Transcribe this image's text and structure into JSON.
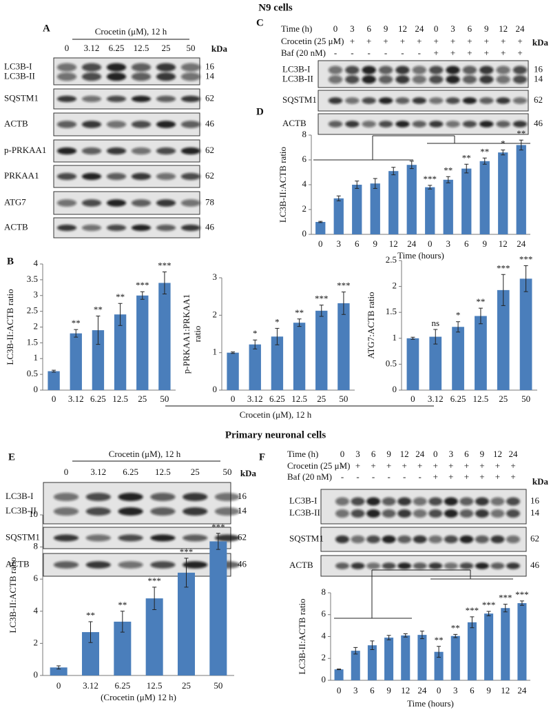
{
  "sections": [
    "N9 cells",
    "Primary neuronal cells"
  ],
  "panel_B": {
    "label": "B",
    "xlabel": "Crocetin (μM), 12 h"
  },
  "blots": [
    {
      "letter": "A",
      "header": "Crocetin (μM), 12 h",
      "lanes": [
        "0",
        "3.12",
        "6.25",
        "12.5",
        "25",
        "50"
      ],
      "kda_unit": "kDa",
      "rows": [
        {
          "labels": [
            "LC3B-I",
            "LC3B-II"
          ],
          "kda": [
            "16",
            "14"
          ]
        },
        {
          "labels": [
            "SQSTM1"
          ],
          "kda": [
            "62"
          ]
        },
        {
          "labels": [
            "ACTB"
          ],
          "kda": [
            "46"
          ]
        },
        {
          "labels": [
            "p-PRKAA1"
          ],
          "kda": [
            "62"
          ]
        },
        {
          "labels": [
            "PRKAA1"
          ],
          "kda": [
            "62"
          ]
        },
        {
          "labels": [
            "ATG7"
          ],
          "kda": [
            "78"
          ]
        },
        {
          "labels": [
            "ACTB"
          ],
          "kda": [
            "46"
          ]
        }
      ]
    },
    {
      "letter": "C",
      "kda_unit": "kDa",
      "treatments": [
        {
          "label": "Time (h)",
          "values": [
            "0",
            "3",
            "6",
            "9",
            "12",
            "24",
            "0",
            "3",
            "6",
            "9",
            "12",
            "24"
          ]
        },
        {
          "label": "Crocetin (25 μM)",
          "values": [
            "-",
            "+",
            "+",
            "+",
            "+",
            "+",
            "+",
            "+",
            "+",
            "+",
            "+",
            "+"
          ]
        },
        {
          "label": "Baf (20 nM)",
          "values": [
            "-",
            "-",
            "-",
            "-",
            "-",
            "-",
            "+",
            "+",
            "+",
            "+",
            "+",
            "+"
          ]
        }
      ],
      "rows": [
        {
          "labels": [
            "LC3B-I",
            "LC3B-II"
          ],
          "kda": [
            "16",
            "14"
          ]
        },
        {
          "labels": [
            "SQSTM1"
          ],
          "kda": [
            "62"
          ]
        },
        {
          "labels": [
            "ACTB"
          ],
          "kda": [
            "46"
          ]
        }
      ]
    },
    {
      "letter": "E",
      "header": "Crocetin (μM), 12 h",
      "lanes": [
        "0",
        "3.12",
        "6.25",
        "12.5",
        "25",
        "50"
      ],
      "kda_unit": "kDa",
      "rows": [
        {
          "labels": [
            "LC3B-I",
            "LC3B-II"
          ],
          "kda": [
            "16",
            "14"
          ]
        },
        {
          "labels": [
            "SQSTM1"
          ],
          "kda": [
            "62"
          ]
        },
        {
          "labels": [
            "ACTB"
          ],
          "kda": [
            "46"
          ]
        }
      ]
    },
    {
      "letter": "F",
      "kda_unit": "kDa",
      "treatments": [
        {
          "label": "Time (h)",
          "values": [
            "0",
            "3",
            "6",
            "9",
            "12",
            "24",
            "0",
            "3",
            "6",
            "9",
            "12",
            "24"
          ]
        },
        {
          "label": "Crocetin (25 μM)",
          "values": [
            "-",
            "+",
            "+",
            "+",
            "+",
            "+",
            "+",
            "+",
            "+",
            "+",
            "+",
            "+"
          ]
        },
        {
          "label": "Baf (20 nM)",
          "values": [
            "-",
            "-",
            "-",
            "-",
            "-",
            "-",
            "+",
            "+",
            "+",
            "+",
            "+",
            "+"
          ]
        }
      ],
      "rows": [
        {
          "labels": [
            "LC3B-I",
            "LC3B-II"
          ],
          "kda": [
            "16",
            "14"
          ]
        },
        {
          "labels": [
            "SQSTM1"
          ],
          "kda": [
            "62"
          ]
        },
        {
          "labels": [
            "ACTB"
          ],
          "kda": [
            "46"
          ]
        }
      ]
    }
  ],
  "chart_data": [
    {
      "type": "bar",
      "label": "D",
      "ylabel": "LC3B-II:ACTB ratio",
      "xlabel": "Time (hours)",
      "color": "#4a7ebb",
      "categories": [
        "0",
        "3",
        "6",
        "9",
        "12",
        "24",
        "0",
        "3",
        "6",
        "9",
        "12",
        "24"
      ],
      "values": [
        1.0,
        2.9,
        4.0,
        4.1,
        5.1,
        5.6,
        3.8,
        4.4,
        5.3,
        5.9,
        6.6,
        7.2
      ],
      "errors": [
        0.05,
        0.2,
        0.3,
        0.4,
        0.3,
        0.3,
        0.15,
        0.25,
        0.35,
        0.25,
        0.2,
        0.4
      ],
      "annotations": [
        null,
        null,
        null,
        null,
        null,
        null,
        "***",
        "**",
        "**",
        "**",
        "*",
        "**"
      ],
      "ylim": [
        0,
        8
      ],
      "yticks": [
        0,
        2,
        4,
        6,
        8
      ]
    },
    {
      "type": "bar",
      "ylabel": "LC3B-II:ACTB ratio",
      "color": "#4a7ebb",
      "categories": [
        "0",
        "3.12",
        "6.25",
        "12.5",
        "25",
        "50"
      ],
      "values": [
        0.6,
        1.8,
        1.9,
        2.4,
        3.0,
        3.4
      ],
      "errors": [
        0.03,
        0.12,
        0.45,
        0.35,
        0.12,
        0.35
      ],
      "annotations": [
        null,
        "**",
        "**",
        "**",
        "***",
        "***"
      ],
      "ylim": [
        0,
        4
      ],
      "yticks": [
        0,
        0.5,
        1,
        1.5,
        2,
        2.5,
        3,
        3.5,
        4
      ]
    },
    {
      "type": "bar",
      "ylabel": [
        "p-PRKAA1:PRKAA1",
        "ratio"
      ],
      "color": "#4a7ebb",
      "categories": [
        "0",
        "3.12",
        "6.25",
        "12.5",
        "25",
        "50"
      ],
      "values": [
        1.0,
        1.22,
        1.43,
        1.8,
        2.12,
        2.32
      ],
      "errors": [
        0.02,
        0.12,
        0.22,
        0.1,
        0.15,
        0.3
      ],
      "annotations": [
        null,
        "*",
        "*",
        "**",
        "***",
        "***"
      ],
      "ylim": [
        0,
        3
      ],
      "yticks": [
        0,
        1,
        2,
        3
      ]
    },
    {
      "type": "bar",
      "ylabel": "ATG7:ACTB ratio",
      "color": "#4a7ebb",
      "categories": [
        "0",
        "3.12",
        "6.25",
        "12.5",
        "25",
        "50"
      ],
      "values": [
        1.0,
        1.03,
        1.22,
        1.43,
        1.93,
        2.15
      ],
      "errors": [
        0.02,
        0.14,
        0.1,
        0.15,
        0.3,
        0.25
      ],
      "annotations": [
        null,
        "ns",
        "*",
        "**",
        "***",
        "***"
      ],
      "ylim": [
        0,
        2.5
      ],
      "yticks": [
        0,
        0.5,
        1,
        1.5,
        2,
        2.5
      ]
    },
    {
      "type": "bar",
      "ylabel": "LC3B-II:ACTB ratio",
      "xlabel": "(Crocetin (μM) 12 h)",
      "color": "#4a7ebb",
      "categories": [
        "0",
        "3.12",
        "6.25",
        "12.5",
        "25",
        "50"
      ],
      "values": [
        0.5,
        2.7,
        3.35,
        4.8,
        6.4,
        8.35
      ],
      "errors": [
        0.1,
        0.65,
        0.65,
        0.7,
        0.9,
        0.5
      ],
      "annotations": [
        null,
        "**",
        "**",
        "***",
        "***",
        "***"
      ],
      "ylim": [
        0,
        10
      ],
      "yticks": [
        0,
        2,
        4,
        6,
        8,
        10
      ]
    },
    {
      "type": "bar",
      "ylabel": "LC3B-II:ACTB ratio",
      "xlabel": "Time (hours)",
      "color": "#4a7ebb",
      "categories": [
        "0",
        "3",
        "6",
        "9",
        "12",
        "24",
        "0",
        "3",
        "6",
        "9",
        "12",
        "24"
      ],
      "values": [
        1.0,
        2.7,
        3.2,
        3.9,
        4.1,
        4.15,
        2.6,
        4.05,
        5.3,
        6.1,
        6.6,
        7.05
      ],
      "errors": [
        0.03,
        0.3,
        0.4,
        0.2,
        0.15,
        0.35,
        0.5,
        0.15,
        0.5,
        0.2,
        0.35,
        0.2
      ],
      "annotations": [
        null,
        null,
        null,
        null,
        null,
        null,
        "**",
        "**",
        "***",
        "***",
        "***",
        "***"
      ],
      "ylim": [
        0,
        8
      ],
      "yticks": [
        0,
        2,
        4,
        6,
        8
      ]
    }
  ]
}
